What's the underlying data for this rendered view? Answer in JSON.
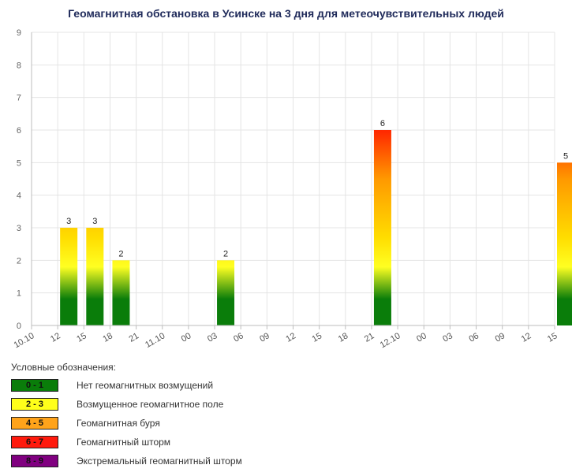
{
  "title": "Геомагнитная обстановка в Усинске на 3 дня для метеочувствительных людей",
  "chart_data": {
    "type": "bar",
    "ylim": [
      0,
      9
    ],
    "yticks": [
      "0",
      "1",
      "2",
      "3",
      "4",
      "5",
      "6",
      "7",
      "8",
      "9"
    ],
    "categories": [
      "10.10",
      "12",
      "15",
      "18",
      "21",
      "11.10",
      "00",
      "03",
      "06",
      "09",
      "12",
      "15",
      "18",
      "21",
      "12.10",
      "00",
      "03",
      "06",
      "09",
      "12",
      "15"
    ],
    "bars": [
      {
        "x": "12",
        "value": 3,
        "label": "3"
      },
      {
        "x": "15",
        "value": 3,
        "label": "3"
      },
      {
        "x": "18",
        "value": 2,
        "label": "2"
      },
      {
        "x": "03",
        "value": 2,
        "label": "2"
      },
      {
        "x": "21",
        "value": 6,
        "label": "6"
      },
      {
        "x": "15",
        "value": 5,
        "label": "5"
      }
    ],
    "bar_indices": [
      1,
      2,
      3,
      7,
      13,
      20
    ],
    "grid": true,
    "colors": {
      "green": "#1f8a1f",
      "yellow": "#ffff22",
      "orange": "#ff9900",
      "red": "#ff2200"
    }
  },
  "legend": {
    "title": "Условные обозначения:",
    "items": [
      {
        "range": "0 - 1",
        "color": "#0a7d0a",
        "label": "Нет геомагнитных возмущений"
      },
      {
        "range": "2 - 3",
        "color": "#ffff1a",
        "label": "Возмущенное геомагнитное поле"
      },
      {
        "range": "4 - 5",
        "color": "#ffa31a",
        "label": "Геомагнитная буря"
      },
      {
        "range": "6 - 7",
        "color": "#ff1a0d",
        "label": "Геомагнитный шторм"
      },
      {
        "range": "8 - 9",
        "color": "#800080",
        "label": "Экстремальный геомагнитный шторм"
      }
    ]
  }
}
